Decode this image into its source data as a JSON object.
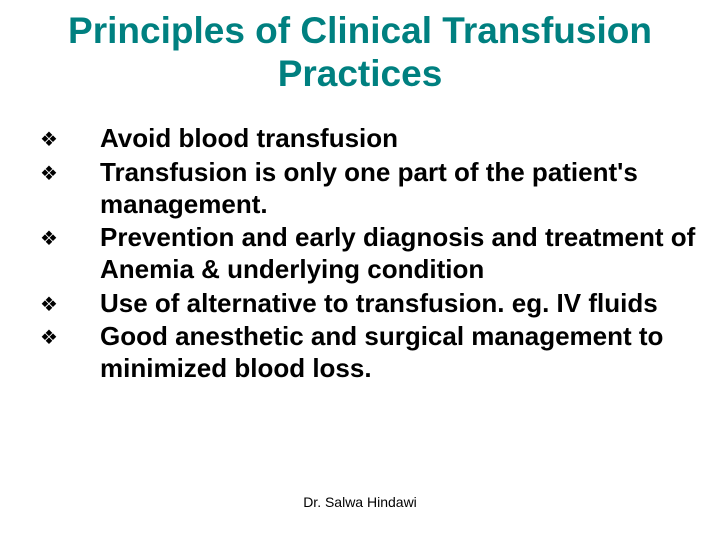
{
  "title": "Principles of Clinical Transfusion Practices",
  "title_color": "#008080",
  "title_fontsize": 37,
  "bullet_glyph": "❖",
  "bullet_color": "#000000",
  "body_fontsize": 26,
  "body_color": "#000000",
  "bullets": [
    {
      "text": "Avoid blood transfusion"
    },
    {
      "text": "Transfusion is only one part of the patient's  management."
    },
    {
      "text": "Prevention and early diagnosis and treatment of Anemia & underlying condition"
    },
    {
      "text": "Use of alternative to transfusion.      eg. IV fluids"
    },
    {
      "text": "Good anesthetic and surgical management to minimized blood loss."
    }
  ],
  "footer": "Dr. Salwa Hindawi",
  "background_color": "#ffffff"
}
